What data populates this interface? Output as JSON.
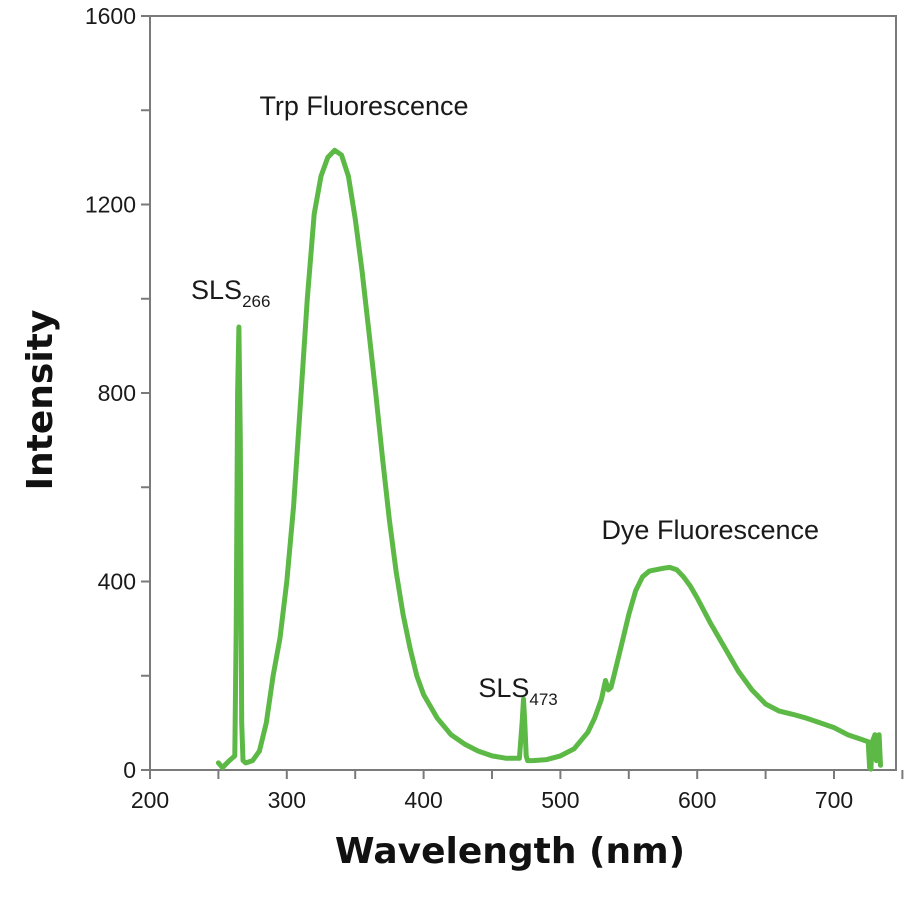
{
  "chart_data": {
    "type": "line",
    "xlabel": "Wavelength (nm)",
    "ylabel": "Intensity",
    "xlim": [
      200,
      750
    ],
    "ylim": [
      0,
      1600
    ],
    "x_ticks": [
      200,
      300,
      400,
      500,
      600,
      700
    ],
    "y_ticks": [
      0,
      400,
      800,
      1200,
      1600
    ],
    "grid": false,
    "series_color": "#5cb946",
    "annotations": [
      {
        "text": "Trp Fluorescence",
        "x": 280,
        "y": 1390
      },
      {
        "text": "SLS",
        "subscript": "266",
        "x": 230,
        "y": 1000
      },
      {
        "text": "SLS",
        "subscript": "473",
        "x": 440,
        "y": 155
      },
      {
        "text": "Dye Fluorescence",
        "x": 530,
        "y": 490
      }
    ],
    "series": [
      {
        "x": [
          250,
          253,
          258,
          262,
          263,
          264,
          265,
          266,
          267,
          268,
          270,
          275,
          280,
          285,
          290,
          295,
          300,
          305,
          310,
          315,
          320,
          325,
          330,
          335,
          340,
          345,
          350,
          355,
          360,
          365,
          370,
          375,
          380,
          385,
          390,
          395,
          400,
          410,
          420,
          430,
          440,
          450,
          460,
          470,
          472,
          473,
          474,
          475,
          476,
          478,
          480,
          490,
          500,
          510,
          520,
          525,
          530,
          533,
          535,
          537,
          540,
          545,
          550,
          555,
          560,
          565,
          570,
          575,
          580,
          585,
          590,
          595,
          600,
          610,
          620,
          630,
          640,
          650,
          660,
          670,
          680,
          690,
          700,
          710,
          720,
          725,
          726,
          727,
          728,
          730,
          731,
          732,
          733,
          734
        ],
        "y": [
          15,
          5,
          20,
          30,
          300,
          800,
          940,
          700,
          100,
          20,
          15,
          20,
          40,
          100,
          200,
          280,
          400,
          560,
          780,
          1000,
          1180,
          1260,
          1300,
          1315,
          1305,
          1260,
          1170,
          1060,
          930,
          800,
          660,
          530,
          420,
          330,
          260,
          200,
          160,
          110,
          75,
          55,
          40,
          30,
          25,
          25,
          100,
          150,
          100,
          30,
          20,
          20,
          20,
          22,
          30,
          45,
          80,
          110,
          150,
          190,
          170,
          175,
          210,
          270,
          330,
          380,
          410,
          422,
          425,
          428,
          430,
          425,
          410,
          390,
          365,
          310,
          260,
          210,
          170,
          140,
          125,
          118,
          110,
          100,
          90,
          75,
          65,
          60,
          5,
          2,
          60,
          75,
          20,
          50,
          75,
          10
        ]
      }
    ]
  }
}
